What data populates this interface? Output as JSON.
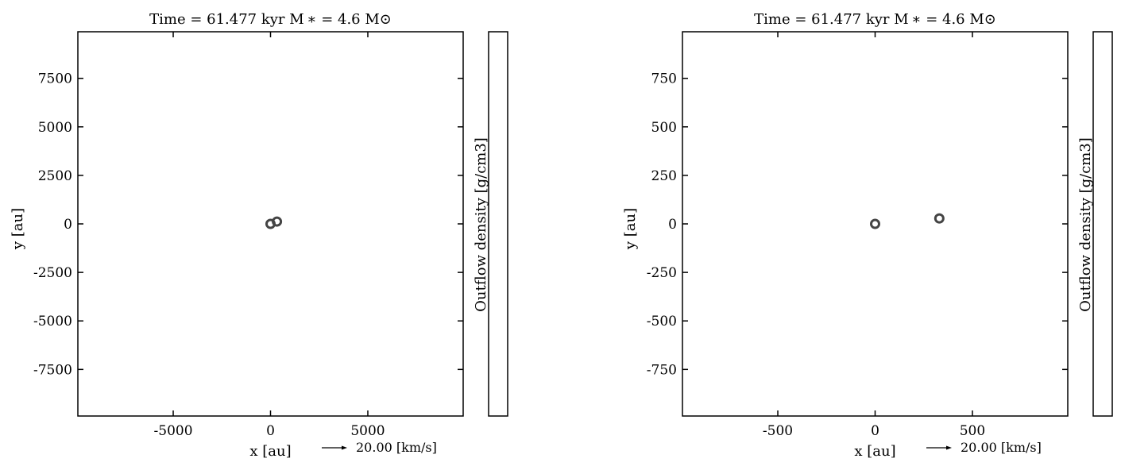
{
  "chart_data": [
    {
      "type": "scatter",
      "title": "Time = 61.477 kyr    M ∗ = 4.6 M⊙",
      "xlabel": "x [au]",
      "ylabel": "y [au]",
      "xlim": [
        -9900,
        9900
      ],
      "ylim": [
        -9900,
        9900
      ],
      "xticks": [
        -5000,
        0,
        5000
      ],
      "xtick_labels": [
        "-5000",
        "0",
        "5000"
      ],
      "yticks": [
        7500,
        5000,
        2500,
        0,
        -2500,
        -5000,
        -7500
      ],
      "ytick_labels": [
        "7500",
        "5000",
        "2500",
        "0",
        "-2500",
        "-5000",
        "-7500"
      ],
      "points": [
        {
          "x": 0,
          "y": 0
        },
        {
          "x": 330,
          "y": 120
        }
      ],
      "marker_color": "#444444",
      "colorbar_label": "Outflow density [g/cm3]",
      "quiver_key": "20.00 [km/s]",
      "grid": false
    },
    {
      "type": "scatter",
      "title": "Time = 61.477 kyr    M ∗ = 4.6 M⊙",
      "xlabel": "x [au]",
      "ylabel": "y [au]",
      "xlim": [
        -990,
        990
      ],
      "ylim": [
        -990,
        990
      ],
      "xticks": [
        -500,
        0,
        500
      ],
      "xtick_labels": [
        "-500",
        "0",
        "500"
      ],
      "yticks": [
        750,
        500,
        250,
        0,
        -250,
        -500,
        -750
      ],
      "ytick_labels": [
        "750",
        "500",
        "250",
        "0",
        "-250",
        "-500",
        "-750"
      ],
      "points": [
        {
          "x": 0,
          "y": 0
        },
        {
          "x": 330,
          "y": 28
        }
      ],
      "marker_color": "#444444",
      "colorbar_label": "Outflow density [g/cm3]",
      "quiver_key": "20.00 [km/s]",
      "grid": false
    }
  ]
}
